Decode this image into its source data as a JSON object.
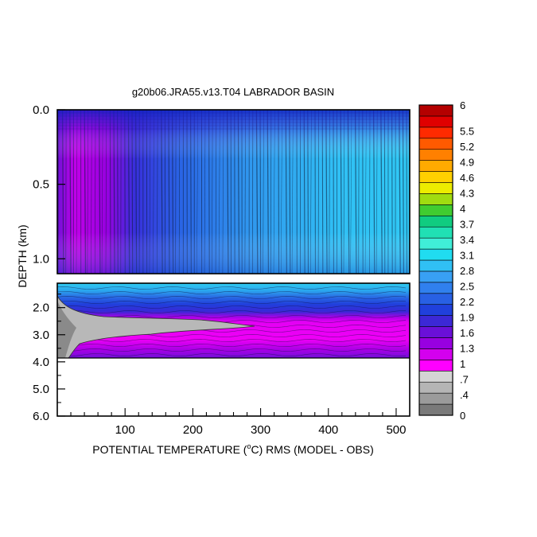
{
  "chart_data": {
    "type": "heatmap",
    "title": "g20b06.JRA55.v13.T04 LABRADOR BASIN",
    "xlabel_pre": "POTENTIAL TEMPERATURE (",
    "xlabel_sup": "o",
    "xlabel_post": "C) RMS (MODEL - OBS)",
    "ylabel": "DEPTH (km)",
    "x_range": [
      0,
      520
    ],
    "x_ticks": [
      100,
      200,
      300,
      400,
      500
    ],
    "upper_panel": {
      "y_range": [
        0.0,
        1.1
      ],
      "y_ticks": [
        "0.0",
        "0.5",
        "1.0"
      ],
      "y_tick_values": [
        0.0,
        0.5,
        1.0
      ]
    },
    "lower_panel": {
      "y_range": [
        1.1,
        6.0
      ],
      "y_ticks": [
        "2.0",
        "3.0",
        "4.0",
        "5.0",
        "6.0"
      ],
      "y_tick_values": [
        2.0,
        3.0,
        4.0,
        5.0,
        6.0
      ],
      "data_bottom": 3.9
    },
    "colorbar": {
      "range": [
        0,
        6
      ],
      "labels": [
        "6",
        "5.5",
        "5.2",
        "4.9",
        "4.6",
        "4.3",
        "4",
        "3.7",
        "3.4",
        "3.1",
        "2.8",
        "2.5",
        "2.2",
        "1.9",
        "1.6",
        "1.3",
        "1",
        ".7",
        ".4",
        "0"
      ],
      "label_values": [
        6,
        5.5,
        5.2,
        4.9,
        4.6,
        4.3,
        4.0,
        3.7,
        3.4,
        3.1,
        2.8,
        2.5,
        2.2,
        1.9,
        1.6,
        1.3,
        1.0,
        0.7,
        0.4,
        0
      ],
      "colors": [
        "#7a7a7a",
        "#9b9b9b",
        "#b5b5b5",
        "#d4d4d4",
        "#ff00ff",
        "#d400ee",
        "#9800e0",
        "#6a10d8",
        "#3c28d6",
        "#2040dc",
        "#2860e4",
        "#3080ee",
        "#38a0f4",
        "#30c0f4",
        "#20dcf0",
        "#40eed8",
        "#20e0b4",
        "#10cc80",
        "#40cc30",
        "#a0dc10",
        "#ecec00",
        "#ffd000",
        "#ffaa00",
        "#ff8000",
        "#ff5a00",
        "#ff2a00",
        "#e00000",
        "#b40000"
      ]
    }
  }
}
